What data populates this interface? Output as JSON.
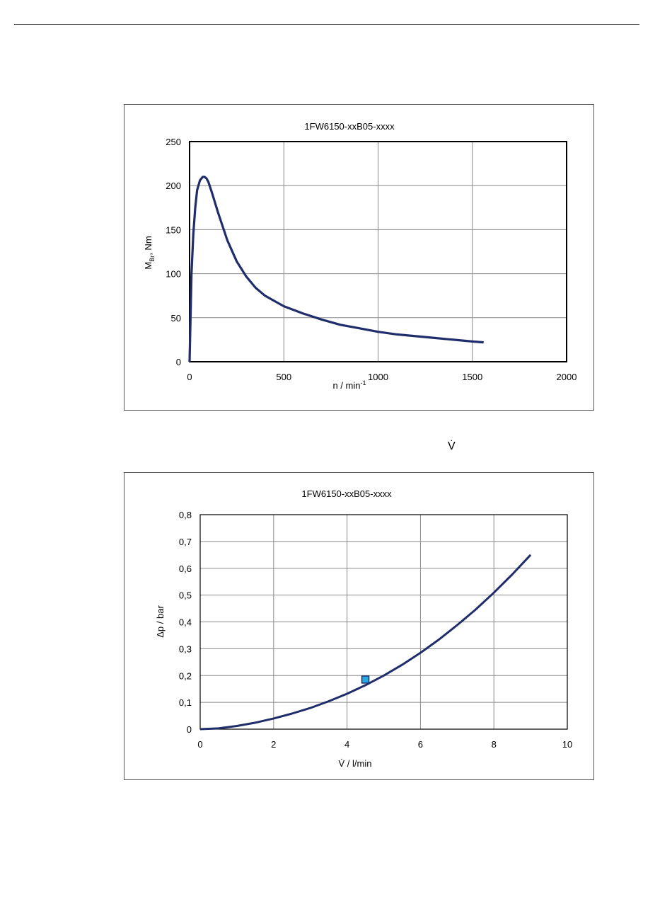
{
  "page": {
    "stray_symbol": "V̇"
  },
  "chart_data": [
    {
      "type": "line",
      "title": "1FW6150-xxB05-xxxx",
      "xlabel_main": "n / min",
      "xlabel_sup": "-1",
      "ylabel_main": "M",
      "ylabel_sub": "Br",
      "ylabel_rest": ", Nm",
      "xlim": [
        0,
        2000
      ],
      "ylim": [
        0,
        250
      ],
      "x_ticks": [
        "0",
        "500",
        "1000",
        "1500",
        "2000"
      ],
      "y_ticks": [
        "0",
        "50",
        "100",
        "150",
        "200",
        "250"
      ],
      "x_tick_values": [
        0,
        500,
        1000,
        1500,
        2000
      ],
      "y_tick_values": [
        0,
        50,
        100,
        150,
        200,
        250
      ],
      "grid": true,
      "line_color": "#1f2d6b",
      "series": [
        {
          "x": [
            0,
            10,
            20,
            30,
            40,
            55,
            70,
            80,
            90,
            100,
            120,
            150,
            200,
            250,
            300,
            350,
            400,
            500,
            600,
            700,
            800,
            900,
            1000,
            1100,
            1200,
            1300,
            1400,
            1500,
            1560
          ],
          "y": [
            0,
            100,
            145,
            175,
            195,
            206,
            210,
            210,
            208,
            204,
            191,
            170,
            138,
            114,
            97,
            84,
            75,
            63,
            55,
            48,
            42,
            38,
            34,
            31,
            29,
            27,
            25,
            23,
            22
          ]
        }
      ]
    },
    {
      "type": "line",
      "title": "1FW6150-xxB05-xxxx",
      "xlabel": "V̇  / l/min",
      "ylabel": "Δp / bar",
      "xlim": [
        0,
        10
      ],
      "ylim": [
        0,
        0.8
      ],
      "x_ticks": [
        "0",
        "2",
        "4",
        "6",
        "8",
        "10"
      ],
      "y_ticks": [
        "0",
        "0,1",
        "0,2",
        "0,3",
        "0,4",
        "0,5",
        "0,6",
        "0,7",
        "0,8"
      ],
      "x_tick_values": [
        0,
        2,
        4,
        6,
        8,
        10
      ],
      "y_tick_values": [
        0,
        0.1,
        0.2,
        0.3,
        0.4,
        0.5,
        0.6,
        0.7,
        0.8
      ],
      "grid": true,
      "line_color": "#1f2d6b",
      "marker_color": "#29a9e1",
      "series": [
        {
          "x": [
            0,
            0.5,
            1,
            1.5,
            2,
            2.5,
            3,
            3.5,
            4,
            4.5,
            5,
            5.5,
            6,
            6.5,
            7,
            7.5,
            8,
            8.5,
            9
          ],
          "y": [
            0,
            0.003,
            0.012,
            0.024,
            0.04,
            0.058,
            0.079,
            0.104,
            0.132,
            0.164,
            0.2,
            0.24,
            0.285,
            0.334,
            0.388,
            0.446,
            0.509,
            0.577,
            0.65
          ]
        }
      ],
      "marker": {
        "x": 4.5,
        "y": 0.185
      }
    }
  ]
}
